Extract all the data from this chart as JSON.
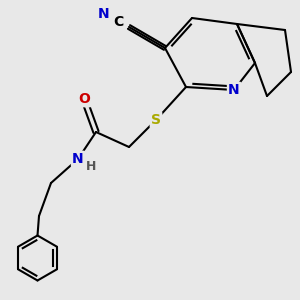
{
  "background_color": "#e8e8e8",
  "bond_color": "#000000",
  "bond_width": 1.5,
  "atom_colors": {
    "C": "#000000",
    "N": "#0000cc",
    "O": "#cc0000",
    "S": "#aaaa00",
    "H": "#555555"
  },
  "font_size": 10,
  "font_size_small": 9
}
